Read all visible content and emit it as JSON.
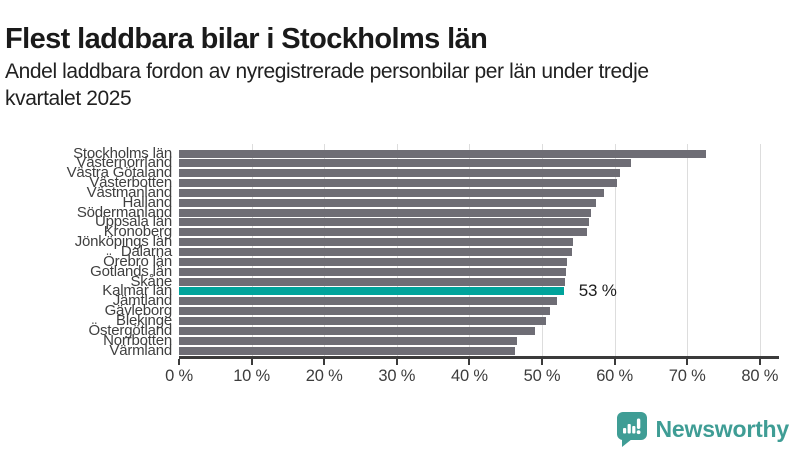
{
  "header": {
    "title": "Flest laddbara bilar i Stockholms län",
    "subtitle_line1": "Andel laddbara fordon av nyregistrerade personbilar per län under tredje",
    "subtitle_line2": "kvartalet 2025"
  },
  "footer": {
    "brand": "Newsworthy"
  },
  "colors": {
    "bar_default": "#6e6d75",
    "bar_highlight": "#00a39b",
    "gridline": "#dddddd",
    "axis": "#3b3b3b",
    "tick_text": "#3d3d3d",
    "label_text": "#3f3f3f",
    "title_text": "#1a1a1a",
    "logo": "#3f9d95"
  },
  "chart_data": {
    "type": "bar",
    "orientation": "horizontal",
    "title": "Flest laddbara bilar i Stockholms län",
    "subtitle": "Andel laddbara fordon av nyregistrerade personbilar per län under tredje kvartalet 2025",
    "categories": [
      "Stockholms län",
      "Västernorrland",
      "Västra Götaland",
      "Västerbotten",
      "Västmanland",
      "Halland",
      "Södermanland",
      "Uppsala län",
      "Kronoberg",
      "Jönköpings län",
      "Dalarna",
      "Örebro län",
      "Gotlands län",
      "Skåne",
      "Kalmar län",
      "Jämtland",
      "Gävleborg",
      "Blekinge",
      "Östergötland",
      "Norrbotten",
      "Värmland"
    ],
    "values": [
      72.6,
      62.3,
      60.8,
      60.3,
      58.5,
      57.5,
      56.7,
      56.5,
      56.2,
      54.3,
      54.2,
      53.5,
      53.3,
      53.1,
      53.0,
      52.0,
      51.1,
      50.5,
      49.1,
      46.6,
      46.3
    ],
    "highlight_index": 14,
    "highlight_label": "53 %",
    "xlabel": "",
    "ylabel": "",
    "xlim": [
      0,
      80
    ],
    "xticks": [
      "0 %",
      "10 %",
      "20 %",
      "30 %",
      "40 %",
      "50 %",
      "60 %",
      "70 %",
      "80 %"
    ],
    "grid": "vertical",
    "legend": "none"
  }
}
